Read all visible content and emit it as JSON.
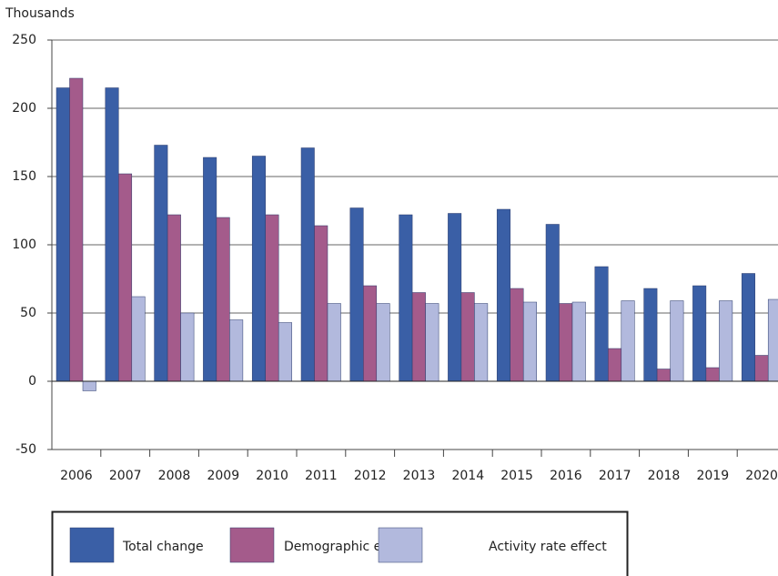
{
  "chart_data": {
    "type": "bar",
    "y_label": "Thousands",
    "categories": [
      "2006",
      "2007",
      "2008",
      "2009",
      "2010",
      "2011",
      "2012",
      "2013",
      "2014",
      "2015",
      "2016",
      "2017",
      "2018",
      "2019",
      "2020"
    ],
    "series": [
      {
        "name": "Total change",
        "color": "#3a5fa6",
        "values": [
          215,
          215,
          173,
          164,
          165,
          171,
          127,
          122,
          123,
          126,
          115,
          84,
          68,
          70,
          79
        ]
      },
      {
        "name": "Demographic effect",
        "color": "#a45b8b",
        "values": [
          222,
          152,
          122,
          120,
          122,
          114,
          70,
          65,
          65,
          68,
          57,
          24,
          9,
          10,
          19
        ]
      },
      {
        "name": "Activity rate effect",
        "color": "#b2b9dd",
        "values": [
          -7,
          62,
          50,
          45,
          43,
          57,
          57,
          57,
          57,
          58,
          58,
          59,
          59,
          59,
          60
        ]
      }
    ],
    "ylim": [
      -50,
      250
    ],
    "yticks": [
      -50,
      0,
      50,
      100,
      150,
      200,
      250
    ],
    "grid": true
  }
}
